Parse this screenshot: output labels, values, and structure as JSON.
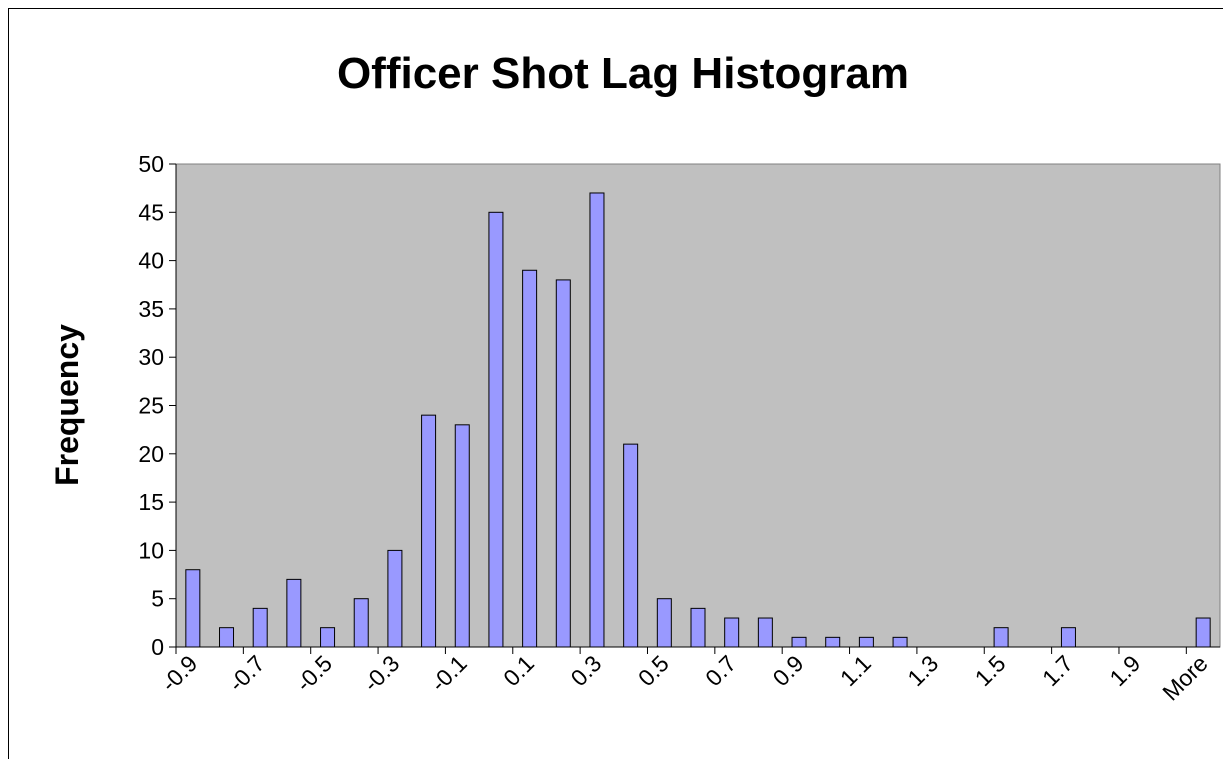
{
  "chart_data": {
    "type": "bar",
    "title": "Officer Shot Lag Histogram",
    "y_label": "Frequency",
    "categories": [
      "-0.9",
      null,
      "-0.7",
      null,
      "-0.5",
      null,
      "-0.3",
      null,
      "-0.1",
      null,
      "0.1",
      null,
      "0.3",
      null,
      "0.5",
      null,
      "0.7",
      null,
      "0.9",
      null,
      "1.1",
      null,
      "1.3",
      null,
      "1.5",
      null,
      "1.7",
      null,
      "1.9",
      null,
      "More"
    ],
    "values": [
      8,
      2,
      4,
      7,
      2,
      5,
      10,
      24,
      23,
      45,
      39,
      38,
      47,
      21,
      5,
      4,
      3,
      3,
      1,
      1,
      1,
      1,
      0,
      0,
      2,
      0,
      2,
      0,
      0,
      0,
      3
    ],
    "color": "#9999ff",
    "plot_background": "#c0c0c0",
    "ylim": [
      0,
      50
    ],
    "yticks": [
      0,
      5,
      10,
      15,
      20,
      25,
      30,
      35,
      40,
      45,
      50
    ],
    "grid": false
  }
}
